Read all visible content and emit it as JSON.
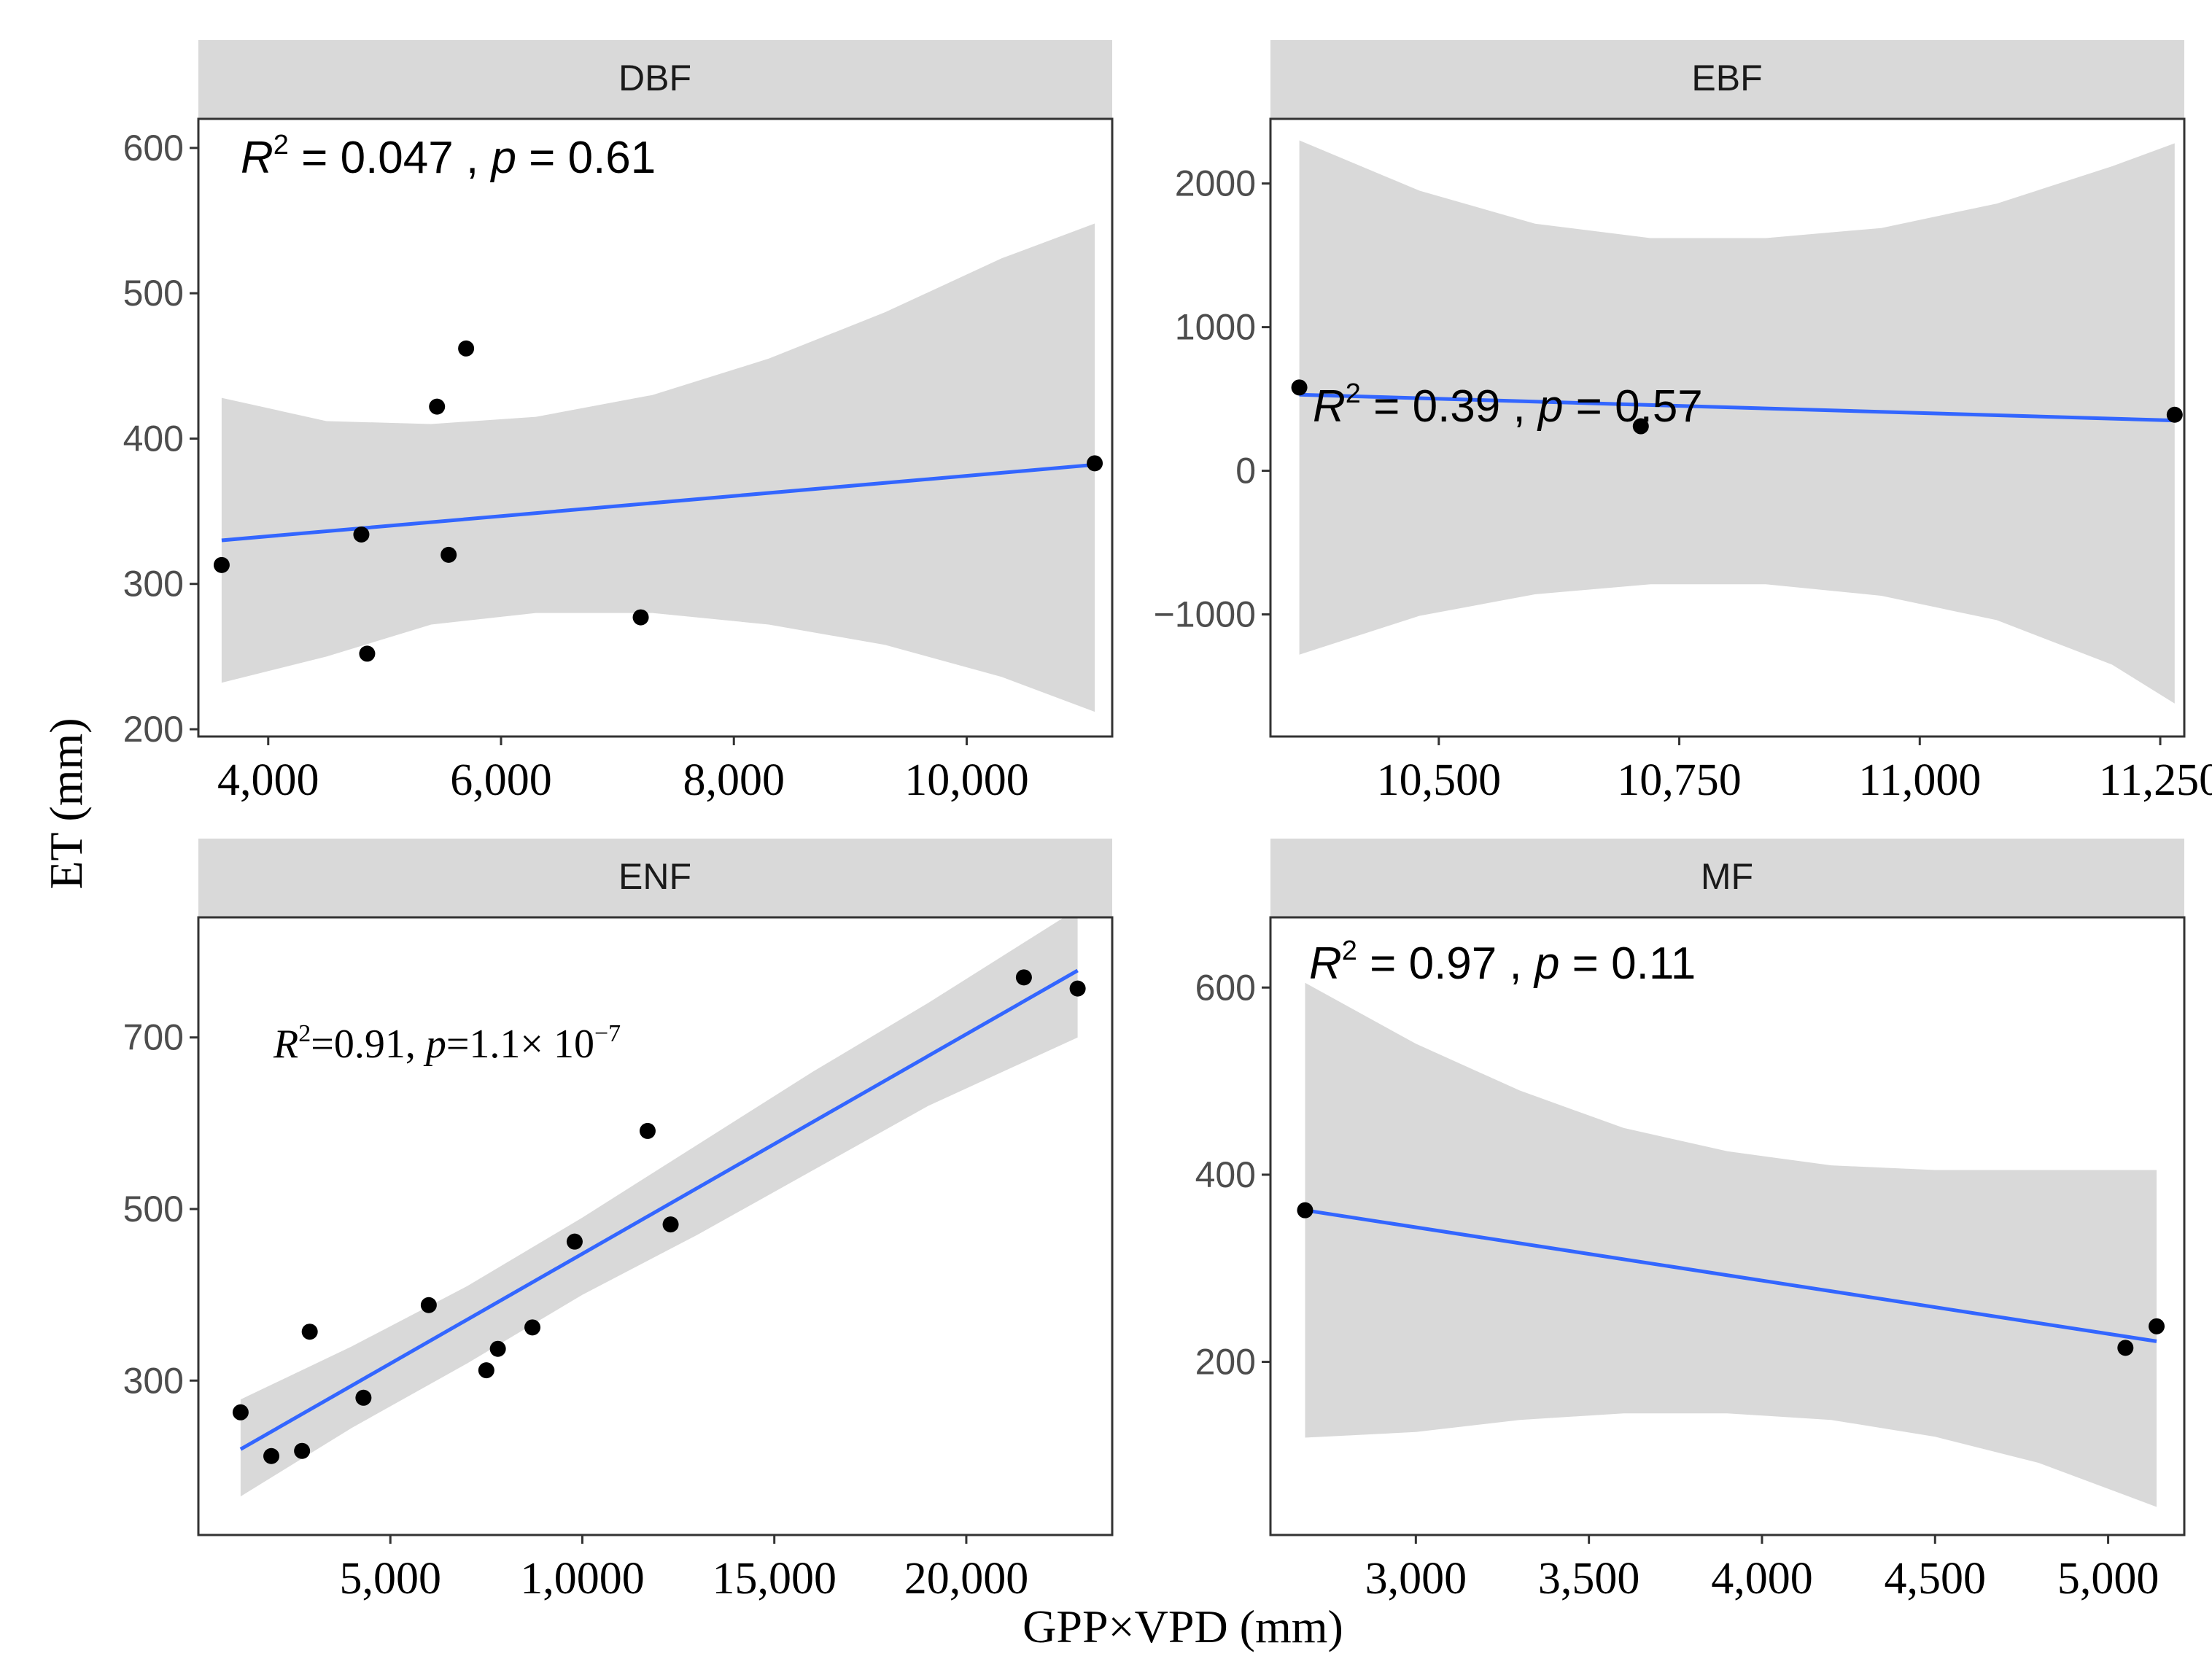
{
  "figure": {
    "xlabel": "GPP×VPD (mm)",
    "ylabel": "ET (mm)",
    "colors": {
      "strip_bg": "#d9d9d9",
      "ribbon": "#d9d9d9",
      "fit_line": "#3366ff",
      "point": "#000000",
      "tick_label": "#4d4d4d",
      "frame": "#333333"
    }
  },
  "chart_data": [
    {
      "type": "scatter",
      "panel": "DBF",
      "title": "DBF",
      "annotation": {
        "r2": "0.047",
        "p": "0.61",
        "style": "sans"
      },
      "xlim": [
        3400,
        11250
      ],
      "ylim": [
        195,
        620
      ],
      "xticks": [
        4000,
        6000,
        8000,
        10000
      ],
      "xtick_labels": [
        "4,000",
        "6,000",
        "8,000",
        "10,000"
      ],
      "yticks": [
        200,
        300,
        400,
        500,
        600
      ],
      "ytick_labels": [
        "200",
        "300",
        "400",
        "500",
        "600"
      ],
      "x": [
        3600,
        4800,
        4850,
        5450,
        5550,
        5700,
        7200,
        11100
      ],
      "y": [
        313,
        334,
        252,
        422,
        320,
        462,
        277,
        383
      ],
      "fit": {
        "x": [
          3600,
          11100
        ],
        "y": [
          330,
          382
        ]
      },
      "ci": {
        "x": [
          3600,
          4500,
          5400,
          6300,
          7300,
          8300,
          9300,
          10300,
          11100
        ],
        "upper": [
          428,
          412,
          410,
          415,
          430,
          455,
          487,
          524,
          548
        ],
        "lower": [
          232,
          250,
          272,
          280,
          280,
          272,
          258,
          236,
          212
        ]
      }
    },
    {
      "type": "scatter",
      "panel": "EBF",
      "title": "EBF",
      "annotation": {
        "r2": "0.39",
        "p": "0.57",
        "style": "sans"
      },
      "xlim": [
        10325,
        11275
      ],
      "ylim": [
        -1850,
        2450
      ],
      "xticks": [
        10500,
        10750,
        11000,
        11250
      ],
      "xtick_labels": [
        "10,500",
        "10,750",
        "11,000",
        "11,250"
      ],
      "yticks": [
        -1000,
        0,
        1000,
        2000
      ],
      "ytick_labels": [
        "−1000",
        "0",
        "1000",
        "2000"
      ],
      "x": [
        10355,
        10710,
        11265
      ],
      "y": [
        580,
        310,
        390
      ],
      "fit": {
        "x": [
          10355,
          11265
        ],
        "y": [
          530,
          350
        ]
      },
      "ci": {
        "x": [
          10355,
          10480,
          10600,
          10720,
          10840,
          10960,
          11080,
          11200,
          11265
        ],
        "upper": [
          2300,
          1950,
          1720,
          1620,
          1620,
          1690,
          1860,
          2120,
          2280
        ],
        "lower": [
          -1280,
          -1010,
          -860,
          -790,
          -790,
          -870,
          -1040,
          -1350,
          -1620
        ]
      }
    },
    {
      "type": "scatter",
      "panel": "ENF",
      "title": "ENF",
      "annotation": {
        "r2": "0.91",
        "p_mantissa": "1.1",
        "p_exp": "−7",
        "style": "serif"
      },
      "xlim": [
        0,
        23800
      ],
      "ylim": [
        120,
        840
      ],
      "xticks": [
        5000,
        10000,
        15000,
        20000
      ],
      "xtick_labels": [
        "5,000",
        "1,0000",
        "15,000",
        "20,000"
      ],
      "yticks": [
        300,
        500,
        700
      ],
      "ytick_labels": [
        "300",
        "500",
        "700"
      ],
      "x": [
        1100,
        1900,
        2700,
        2900,
        4300,
        6000,
        7500,
        7800,
        8700,
        9800,
        11700,
        12300,
        21500,
        22900
      ],
      "y": [
        263,
        212,
        218,
        357,
        280,
        388,
        312,
        337,
        362,
        462,
        591,
        482,
        770,
        757
      ],
      "fit": {
        "x": [
          1100,
          22900
        ],
        "y": [
          220,
          778
        ]
      },
      "ci": {
        "x": [
          1100,
          4000,
          7000,
          10000,
          13000,
          16000,
          19000,
          22900
        ],
        "upper": [
          278,
          340,
          410,
          490,
          575,
          660,
          740,
          850
        ],
        "lower": [
          165,
          245,
          320,
          400,
          470,
          545,
          620,
          700
        ]
      }
    },
    {
      "type": "scatter",
      "panel": "MF",
      "title": "MF",
      "annotation": {
        "r2": "0.97",
        "p": "0.11",
        "style": "sans"
      },
      "xlim": [
        2580,
        5220
      ],
      "ylim": [
        15,
        675
      ],
      "xticks": [
        3000,
        3500,
        4000,
        4500,
        5000
      ],
      "xtick_labels": [
        "3,000",
        "3,500",
        "4,000",
        "4,500",
        "5,000"
      ],
      "yticks": [
        200,
        400,
        600
      ],
      "ytick_labels": [
        "200",
        "400",
        "600"
      ],
      "x": [
        2680,
        5050,
        5140
      ],
      "y": [
        362,
        215,
        238
      ],
      "fit": {
        "x": [
          2680,
          5140
        ],
        "y": [
          362,
          222
        ]
      },
      "ci": {
        "x": [
          2680,
          3000,
          3300,
          3600,
          3900,
          4200,
          4500,
          4800,
          5140
        ],
        "upper": [
          605,
          540,
          490,
          450,
          425,
          410,
          405,
          405,
          405
        ],
        "lower": [
          119,
          125,
          138,
          145,
          145,
          138,
          120,
          92,
          45
        ]
      }
    }
  ]
}
